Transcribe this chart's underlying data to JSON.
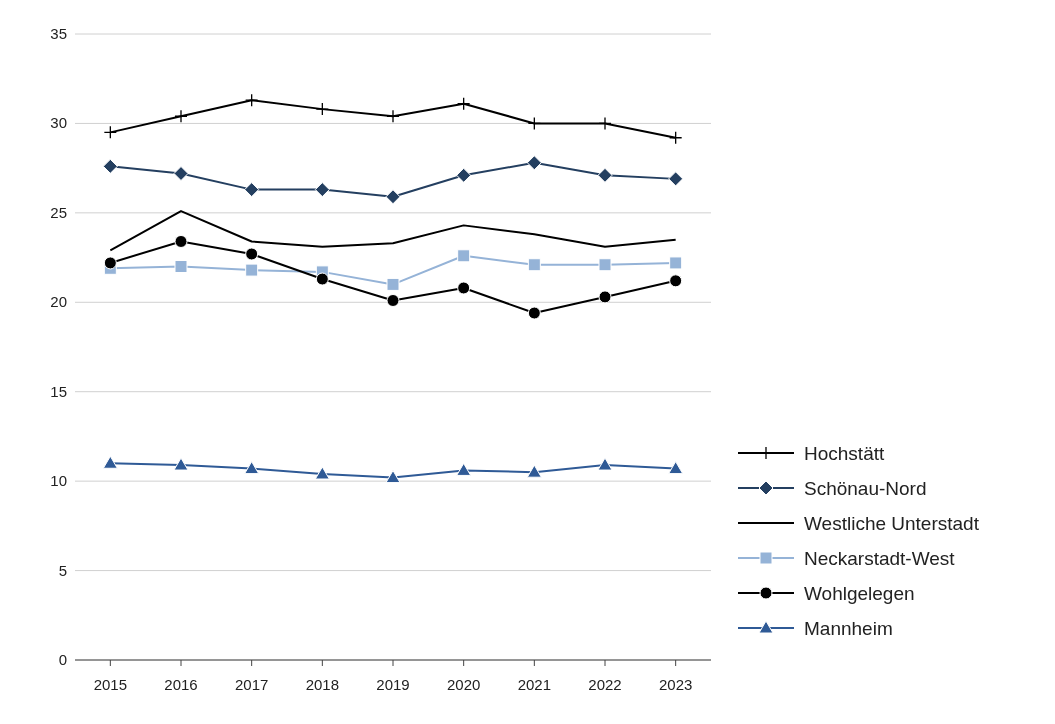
{
  "chart_data": {
    "type": "line",
    "categories": [
      "2015",
      "2016",
      "2017",
      "2018",
      "2019",
      "2020",
      "2021",
      "2022",
      "2023"
    ],
    "series": [
      {
        "name": "Hochstätt",
        "color": "#000000",
        "marker": "cross",
        "values": [
          29.5,
          30.4,
          31.3,
          30.8,
          30.4,
          31.1,
          30.0,
          30.0,
          29.2
        ]
      },
      {
        "name": "Schönau-Nord",
        "color": "#243f60",
        "marker": "diamond",
        "values": [
          27.6,
          27.2,
          26.3,
          26.3,
          25.9,
          27.1,
          27.8,
          27.1,
          26.9
        ]
      },
      {
        "name": "Westliche Unterstadt",
        "color": "#000000",
        "marker": "none",
        "values": [
          22.9,
          25.1,
          23.4,
          23.1,
          23.3,
          24.3,
          23.8,
          23.1,
          23.5
        ]
      },
      {
        "name": "Neckarstadt-West",
        "color": "#95b3d7",
        "marker": "square",
        "values": [
          21.9,
          22.0,
          21.8,
          21.7,
          21.0,
          22.6,
          22.1,
          22.1,
          22.2
        ]
      },
      {
        "name": "Wohlgelegen",
        "color": "#000000",
        "marker": "circle",
        "values": [
          22.2,
          23.4,
          22.7,
          21.3,
          20.1,
          20.8,
          19.4,
          20.3,
          21.2
        ]
      },
      {
        "name": "Mannheim",
        "color": "#2f5a96",
        "marker": "triangle",
        "values": [
          11.0,
          10.9,
          10.7,
          10.4,
          10.2,
          10.6,
          10.5,
          10.9,
          10.7
        ]
      }
    ],
    "ylim": [
      0,
      35
    ],
    "yticks": [
      0,
      5,
      10,
      15,
      20,
      25,
      30,
      35
    ],
    "grid": "y",
    "legend": "right"
  }
}
